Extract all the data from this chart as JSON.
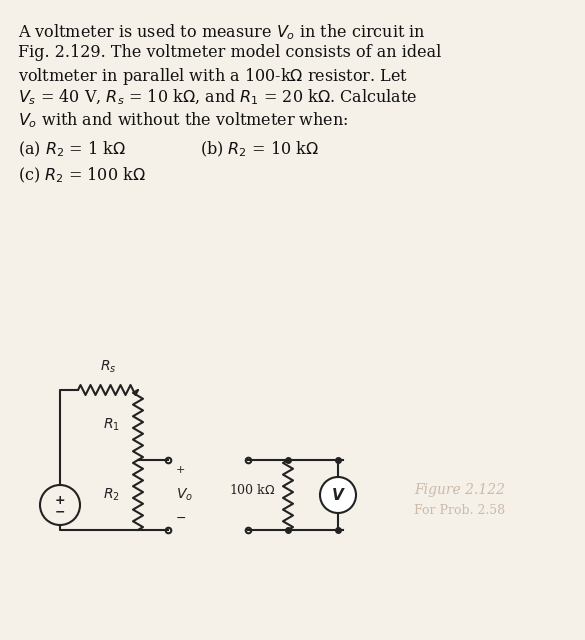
{
  "title_text": "A voltmeter is used to measure $V_o$ in the circuit in\nFig. 2.129. The voltmeter model consists of an ideal\nvoltmeter in parallel with a 100-kΩ resistor. Let\n$V_s$ = 40 V, $R_s$ = 10 kΩ, and $R_1$ = 20 kΩ. Calculate\n$V_o$ with and without the voltmeter when:",
  "parts": [
    "(a) $R_2$ = 1 kΩ",
    "(b) $R_2$ = 10 kΩ",
    "(c) $R_2$ = 100 kΩ"
  ],
  "bg_color": "#f5f0e8",
  "text_color": "#111111",
  "circuit_color": "#222222"
}
